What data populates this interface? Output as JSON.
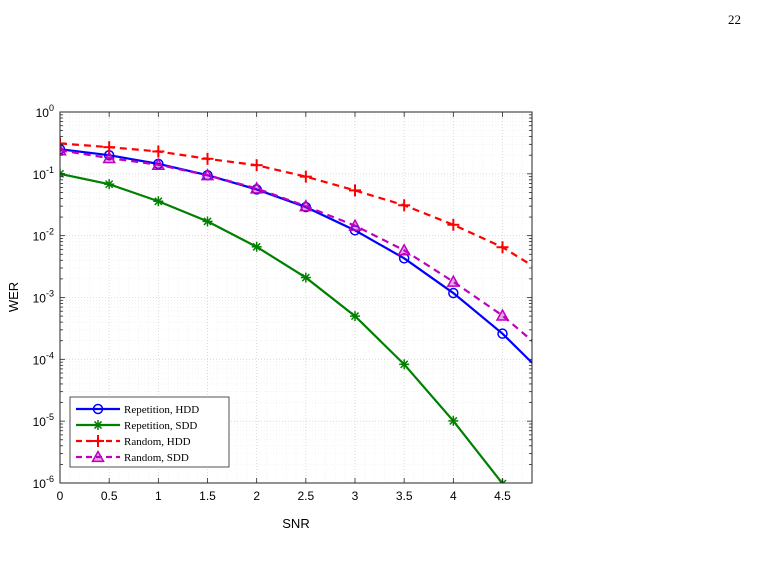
{
  "page": {
    "number": "22"
  },
  "chart_data": {
    "type": "line",
    "title": "",
    "xlabel": "SNR",
    "ylabel": "WER",
    "xlim": [
      0,
      4.8
    ],
    "ylim": [
      1e-06,
      1
    ],
    "yscale": "log",
    "grid": true,
    "minor_grid": true,
    "legend_position": "bottom-left",
    "x_ticks": [
      0,
      0.5,
      1,
      1.5,
      2,
      2.5,
      3,
      3.5,
      4,
      4.5
    ],
    "x_tick_labels": [
      "0",
      "0.5",
      "1",
      "1.5",
      "2",
      "2.5",
      "3",
      "3.5",
      "4",
      "4.5"
    ],
    "y_ticks": [
      {
        "value": 1,
        "base": "10",
        "exp": "0"
      },
      {
        "value": 0.1,
        "base": "10",
        "exp": "-1"
      },
      {
        "value": 0.01,
        "base": "10",
        "exp": "-2"
      },
      {
        "value": 0.001,
        "base": "10",
        "exp": "-3"
      },
      {
        "value": 0.0001,
        "base": "10",
        "exp": "-4"
      },
      {
        "value": 1e-05,
        "base": "10",
        "exp": "-5"
      },
      {
        "value": 1e-06,
        "base": "10",
        "exp": "-6"
      }
    ],
    "series": [
      {
        "name": "Repetition, HDD",
        "color": "#0000ff",
        "dash": "solid",
        "marker": "circle",
        "x": [
          0,
          0.5,
          1,
          1.5,
          2,
          2.5,
          3,
          3.5,
          4,
          4.5,
          4.8
        ],
        "y": [
          0.25,
          0.2,
          0.145,
          0.095,
          0.056,
          0.029,
          0.0122,
          0.0043,
          0.00118,
          0.00026,
          8.8e-05
        ],
        "marker_count": 10
      },
      {
        "name": "Repetition, SDD",
        "color": "#008000",
        "dash": "solid",
        "marker": "asterisk",
        "x": [
          0,
          0.5,
          1,
          1.5,
          2,
          2.5,
          3,
          3.5,
          4,
          4.5
        ],
        "y": [
          0.1,
          0.068,
          0.036,
          0.017,
          0.0066,
          0.0021,
          0.0005,
          8.3e-05,
          1.01e-05,
          9.8e-07
        ],
        "marker_count": 10
      },
      {
        "name": "Random, HDD",
        "color": "#ff0000",
        "dash": "dashed",
        "marker": "plus",
        "x": [
          0,
          0.5,
          1,
          1.5,
          2,
          2.5,
          3,
          3.5,
          4,
          4.5,
          4.8
        ],
        "y": [
          0.31,
          0.27,
          0.23,
          0.175,
          0.138,
          0.09,
          0.054,
          0.031,
          0.015,
          0.0065,
          0.0033
        ],
        "marker_count": 10
      },
      {
        "name": "Random, SDD",
        "color": "#bf00bf",
        "dash": "dashed",
        "marker": "triangle",
        "x": [
          0,
          0.5,
          1,
          1.5,
          2,
          2.5,
          3,
          3.5,
          4,
          4.5,
          4.8
        ],
        "y": [
          0.24,
          0.18,
          0.14,
          0.095,
          0.058,
          0.03,
          0.0145,
          0.0058,
          0.0018,
          0.00051,
          0.0002
        ],
        "marker_count": 10
      }
    ]
  }
}
